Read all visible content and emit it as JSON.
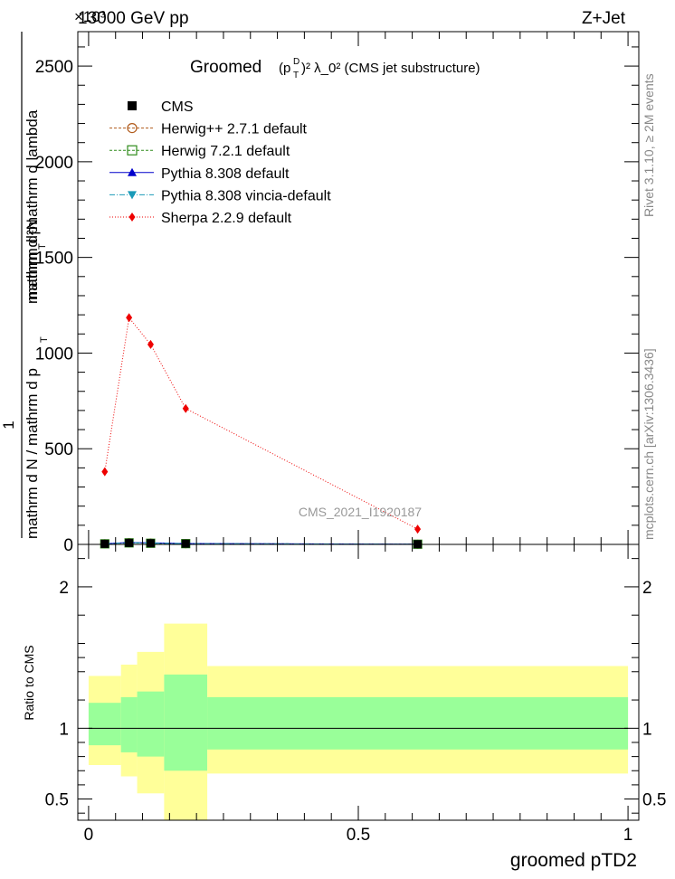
{
  "header": {
    "left": "13000 GeV pp",
    "right": "Z+Jet",
    "exponent": "×10³",
    "side_top": "Rivet 3.1.10, ≥ 2M events",
    "side_bottom": "mcplots.cern.ch [arXiv:1306.3436]",
    "watermark": "CMS_2021_I1920187"
  },
  "chart_data": [
    {
      "type": "line",
      "title_main": "Groomed",
      "title_math": "(p",
      "title_sup": "D",
      "title_sub": "T",
      "title_rest": ")² λ_0² (CMS jet substructure)",
      "ylabel_top_num": "1",
      "ylabel_top_den": "mathrm d N / mathrm d p",
      "ylabel_top_den_sub": "T",
      "ylabel_main_num": "mathrm d²N",
      "ylabel_main_den": "mathrm d p",
      "ylabel_main_den_sub": "T",
      "ylabel_main_den_rest": "mathrm d lambda",
      "ylim": [
        0,
        2680
      ],
      "yticks": [
        0,
        500,
        1000,
        1500,
        2000,
        2500
      ],
      "ytick_labels": [
        "0",
        "500",
        "1000",
        "1500",
        "2000",
        "2500"
      ],
      "legend_position": "top-left",
      "series": [
        {
          "name": "CMS",
          "color": "#000000",
          "marker": "square",
          "x": [
            0.03,
            0.075,
            0.115,
            0.18,
            0.61
          ],
          "y": [
            3,
            8,
            6,
            4,
            1
          ]
        },
        {
          "name": "Herwig++ 2.7.1 default",
          "color": "#b05a1a",
          "marker": "circle-open",
          "dash": "3,2",
          "x": [
            0.03,
            0.075,
            0.115,
            0.18,
            0.61
          ],
          "y": [
            3,
            9,
            7,
            4,
            1
          ]
        },
        {
          "name": "Herwig 7.2.1 default",
          "color": "#2e8b1a",
          "marker": "square-open",
          "dash": "3,2",
          "x": [
            0.03,
            0.075,
            0.115,
            0.18,
            0.61
          ],
          "y": [
            3,
            8,
            6,
            4,
            1
          ]
        },
        {
          "name": "Pythia 8.308 default",
          "color": "#0000cc",
          "marker": "triangle-up",
          "dash": "",
          "x": [
            0.03,
            0.075,
            0.115,
            0.18,
            0.61
          ],
          "y": [
            4,
            10,
            8,
            5,
            1
          ]
        },
        {
          "name": "Pythia 8.308 vincia-default",
          "color": "#1a9ab8",
          "marker": "triangle-down",
          "dash": "6,2,1,2",
          "x": [
            0.03,
            0.075,
            0.115,
            0.18,
            0.61
          ],
          "y": [
            3,
            9,
            7,
            4,
            1
          ]
        },
        {
          "name": "Sherpa 2.2.9 default",
          "color": "#ee0000",
          "marker": "diamond",
          "dash": "1,2",
          "x": [
            0.03,
            0.075,
            0.115,
            0.18,
            0.61
          ],
          "y": [
            380,
            1185,
            1045,
            710,
            80
          ]
        }
      ]
    },
    {
      "type": "area",
      "ylabel": "Ratio to CMS",
      "xlabel": "groomed pTD2",
      "xlim": [
        -0.02,
        1.02
      ],
      "ylim": [
        0.35,
        2.3
      ],
      "xticks": [
        0,
        0.5,
        1
      ],
      "xtick_labels": [
        "0",
        "0.5",
        "1"
      ],
      "yticks": [
        0.5,
        1,
        2
      ],
      "ytick_labels": [
        "0.5",
        "1",
        "2"
      ],
      "reference": 1,
      "colors": {
        "stat": "#99ff99",
        "total": "#ffff99"
      },
      "bins": [
        {
          "lo": 0.0,
          "hi": 0.06,
          "green": [
            0.88,
            1.18
          ],
          "yellow": [
            0.74,
            1.37
          ]
        },
        {
          "lo": 0.06,
          "hi": 0.09,
          "green": [
            0.83,
            1.22
          ],
          "yellow": [
            0.66,
            1.45
          ]
        },
        {
          "lo": 0.09,
          "hi": 0.14,
          "green": [
            0.8,
            1.26
          ],
          "yellow": [
            0.54,
            1.54
          ]
        },
        {
          "lo": 0.14,
          "hi": 0.22,
          "green": [
            0.7,
            1.38
          ],
          "yellow": [
            0.35,
            1.74
          ]
        },
        {
          "lo": 0.22,
          "hi": 1.0,
          "green": [
            0.85,
            1.22
          ],
          "yellow": [
            0.68,
            1.44
          ]
        }
      ]
    }
  ]
}
